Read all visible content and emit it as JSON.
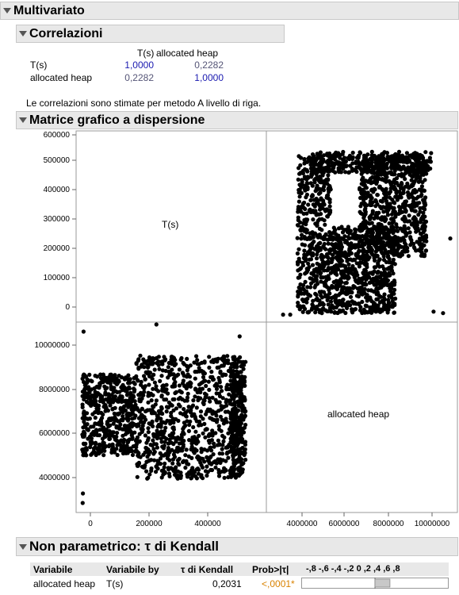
{
  "multivariate": {
    "title": "Multivariato"
  },
  "correlations": {
    "title": "Correlazioni",
    "columns": [
      "T(s)",
      "allocated heap"
    ],
    "rows": [
      {
        "label": "T(s)",
        "values": [
          "1,0000",
          "0,2282"
        ]
      },
      {
        "label": "allocated heap",
        "values": [
          "0,2282",
          "1,0000"
        ]
      }
    ],
    "note": "Le correlazioni sono stimate per metodo A livello di riga."
  },
  "scatter_matrix": {
    "title": "Matrice grafico a dispersione",
    "var1_label": "T(s)",
    "var2_label": "allocated heap",
    "top_y_ticks": [
      "600000",
      "500000",
      "400000",
      "300000",
      "200000",
      "100000",
      "0"
    ],
    "bottom_y_ticks": [
      "10000000",
      "8000000",
      "6000000",
      "4000000"
    ],
    "left_x_ticks": [
      "0",
      "200000",
      "400000"
    ],
    "right_x_ticks": [
      "4000000",
      "6000000",
      "8000000",
      "10000000"
    ]
  },
  "chart_data": [
    {
      "type": "scatter",
      "panel": "top-right",
      "x_variable": "allocated heap",
      "y_variable": "T(s)",
      "xlim": [
        2600000,
        10600000
      ],
      "ylim": [
        -20000,
        620000
      ],
      "clusters": [
        {
          "x_range": [
            3900000,
            5300000
          ],
          "y_range": [
            10000,
            540000
          ],
          "count": 500
        },
        {
          "x_range": [
            5300000,
            8000000
          ],
          "y_range": [
            10000,
            300000
          ],
          "count": 700
        },
        {
          "x_range": [
            6500000,
            9300000
          ],
          "y_range": [
            200000,
            540000
          ],
          "count": 700
        },
        {
          "x_range": [
            4500000,
            9500000
          ],
          "y_range": [
            480000,
            550000
          ],
          "count": 300
        }
      ],
      "points": [
        [
          3300000,
          5000
        ],
        [
          3600000,
          5000
        ],
        [
          10000000,
          10000
        ],
        [
          9600000,
          15000
        ],
        [
          10300000,
          260000
        ]
      ]
    },
    {
      "type": "scatter",
      "panel": "bottom-left",
      "x_variable": "T(s)",
      "y_variable": "allocated heap",
      "xlim": [
        -20000,
        620000
      ],
      "ylim": [
        2600000,
        10600000
      ],
      "clusters": [
        {
          "x_range": [
            0,
            180000
          ],
          "y_range": [
            5000000,
            8400000
          ],
          "count": 500
        },
        {
          "x_range": [
            180000,
            540000
          ],
          "y_range": [
            4000000,
            9200000
          ],
          "count": 900
        },
        {
          "x_range": [
            500000,
            550000
          ],
          "y_range": [
            4100000,
            9000000
          ],
          "count": 250
        }
      ],
      "points": [
        [
          2000,
          3000000
        ],
        [
          3000,
          3400000
        ],
        [
          250000,
          10500000
        ],
        [
          530000,
          10000000
        ],
        [
          5000,
          10200000
        ]
      ]
    }
  ],
  "kendall": {
    "title": "Non parametrico: τ di Kendall",
    "headers": [
      "Variabile",
      "Variabile by",
      "τ di Kendall",
      "Prob>|τ|",
      "-,8 -,6 -,4 -,2  0  ,2  ,4  ,6  ,8"
    ],
    "row": {
      "var": "allocated heap",
      "by": "T(s)",
      "tau": "0,2031",
      "prob": "<,0001*"
    },
    "bar_value": 0.2031
  }
}
